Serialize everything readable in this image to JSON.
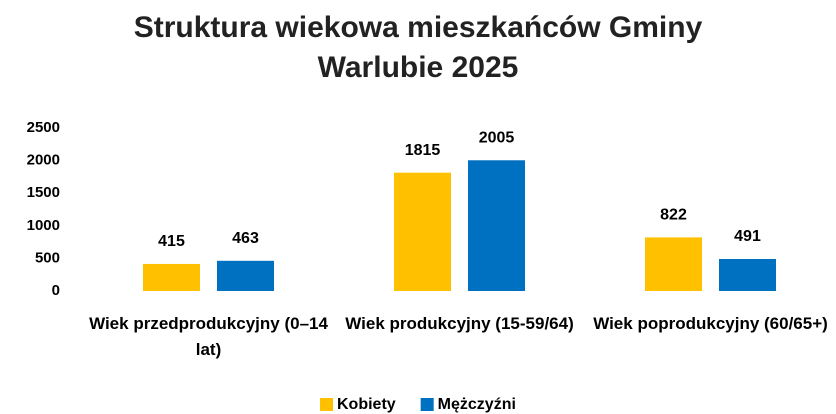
{
  "chart_data": {
    "type": "bar",
    "title": "Struktura wiekowa mieszkańców Gminy Warlubie 2025",
    "categories": [
      "Wiek przedprodukcyjny (0–14 lat)",
      "Wiek produkcyjny (15-59/64)",
      "Wiek poprodukcyjny (60/65+)"
    ],
    "series": [
      {
        "name": "Kobiety",
        "color": "#FFC000",
        "values": [
          415,
          1815,
          822
        ]
      },
      {
        "name": "Mężczyźni",
        "color": "#0070C0",
        "values": [
          463,
          2005,
          491
        ]
      }
    ],
    "ylim": [
      0,
      2500
    ],
    "yticks": [
      0,
      500,
      1000,
      1500,
      2000,
      2500
    ],
    "legend": "bottom"
  }
}
